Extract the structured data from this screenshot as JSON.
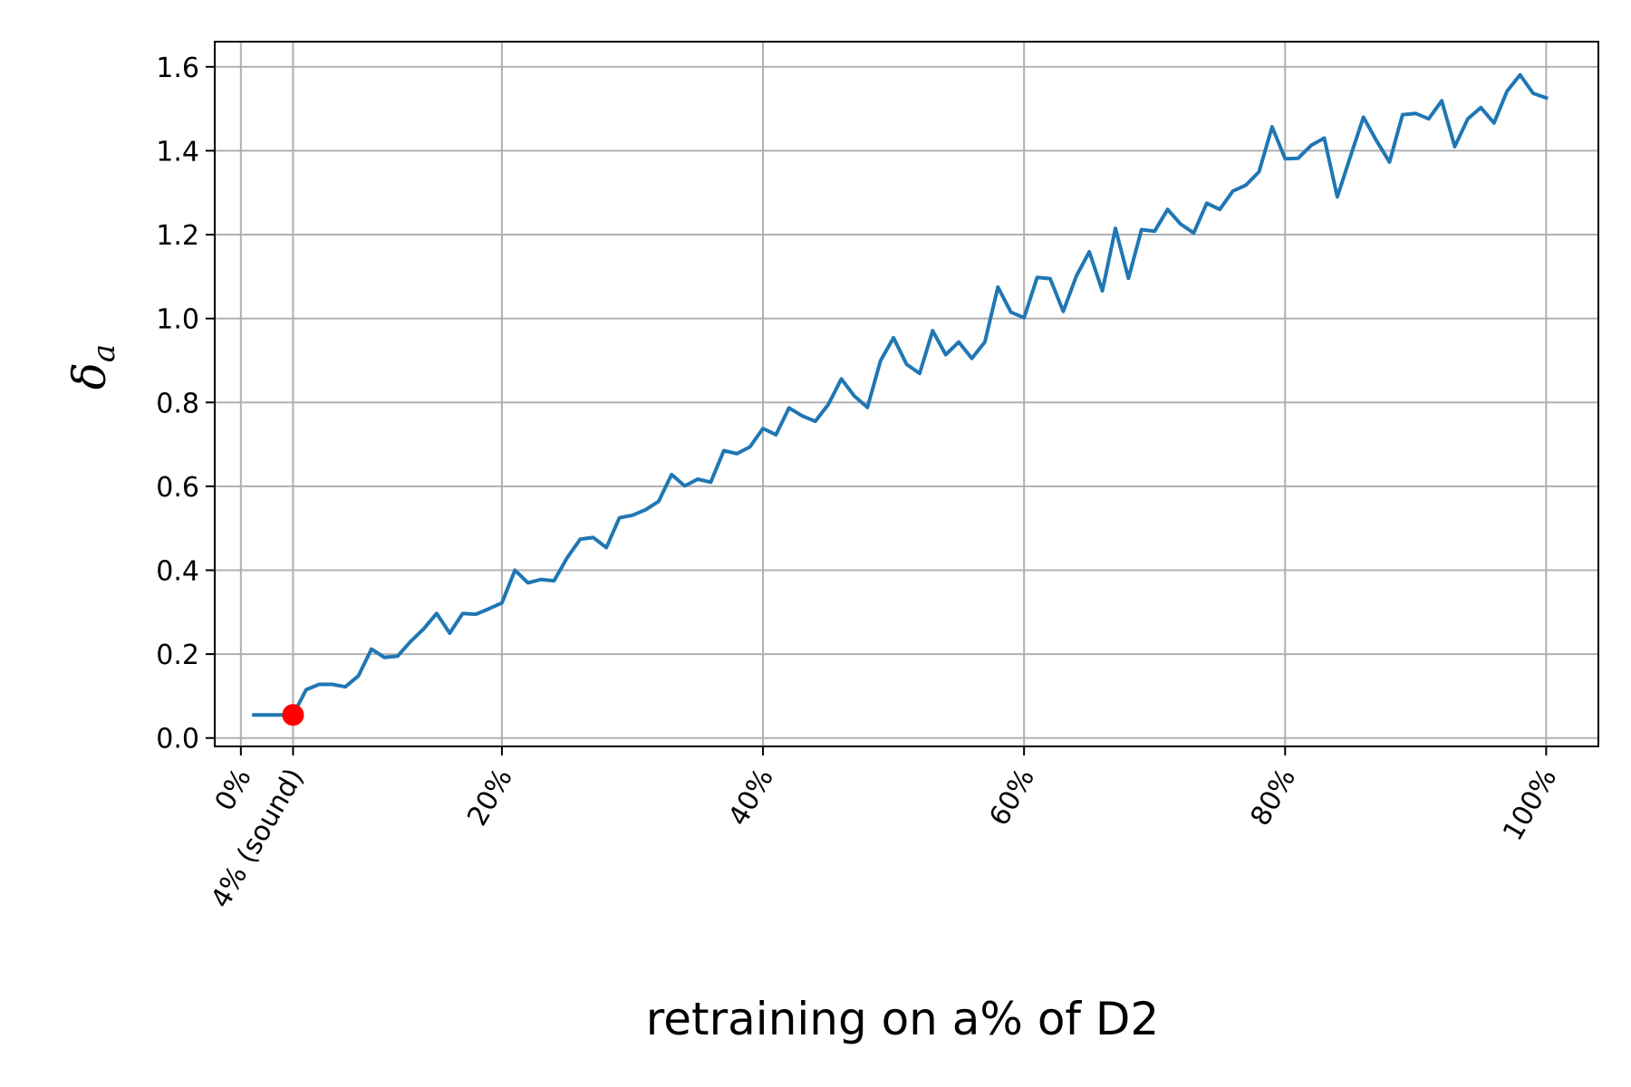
{
  "chart_data": {
    "type": "line",
    "xlabel": "retraining on a% of D2",
    "ylabel": {
      "main": "δ",
      "sub": "a"
    },
    "xlim": [
      -2,
      104
    ],
    "ylim": [
      -0.02,
      1.66
    ],
    "grid": true,
    "x_ticks": [
      {
        "value": 0,
        "label": "0%"
      },
      {
        "value": 4,
        "label": "4% (sound)"
      },
      {
        "value": 20,
        "label": "20%"
      },
      {
        "value": 40,
        "label": "40%"
      },
      {
        "value": 60,
        "label": "60%"
      },
      {
        "value": 80,
        "label": "80%"
      },
      {
        "value": 100,
        "label": "100%"
      }
    ],
    "y_ticks": [
      {
        "value": 0.0,
        "label": "0.0"
      },
      {
        "value": 0.2,
        "label": "0.2"
      },
      {
        "value": 0.4,
        "label": "0.4"
      },
      {
        "value": 0.6,
        "label": "0.6"
      },
      {
        "value": 0.8,
        "label": "0.8"
      },
      {
        "value": 1.0,
        "label": "1.0"
      },
      {
        "value": 1.2,
        "label": "1.2"
      },
      {
        "value": 1.4,
        "label": "1.4"
      },
      {
        "value": 1.6,
        "label": "1.6"
      }
    ],
    "series": [
      {
        "color": "#1f77b4",
        "x": [
          1,
          2,
          3,
          4,
          5,
          6,
          7,
          8,
          9,
          10,
          11,
          12,
          13,
          14,
          15,
          16,
          17,
          18,
          19,
          20,
          21,
          22,
          23,
          24,
          25,
          26,
          27,
          28,
          29,
          30,
          31,
          32,
          33,
          34,
          35,
          36,
          37,
          38,
          39,
          40,
          41,
          42,
          43,
          44,
          45,
          46,
          47,
          48,
          49,
          50,
          51,
          52,
          53,
          54,
          55,
          56,
          57,
          58,
          59,
          60,
          61,
          62,
          63,
          64,
          65,
          66,
          67,
          68,
          69,
          70,
          71,
          72,
          73,
          74,
          75,
          76,
          77,
          78,
          79,
          80,
          81,
          82,
          83,
          84,
          85,
          86,
          87,
          88,
          89,
          90,
          91,
          92,
          93,
          94,
          95,
          96,
          97,
          98,
          99,
          100
        ],
        "y": [
          0.055,
          0.055,
          0.055,
          0.055,
          0.115,
          0.128,
          0.128,
          0.122,
          0.148,
          0.212,
          0.192,
          0.195,
          0.23,
          0.26,
          0.297,
          0.25,
          0.297,
          0.295,
          0.308,
          0.322,
          0.4,
          0.37,
          0.378,
          0.375,
          0.43,
          0.474,
          0.478,
          0.454,
          0.525,
          0.531,
          0.544,
          0.564,
          0.628,
          0.601,
          0.617,
          0.61,
          0.685,
          0.678,
          0.694,
          0.738,
          0.723,
          0.787,
          0.768,
          0.755,
          0.795,
          0.856,
          0.815,
          0.788,
          0.899,
          0.954,
          0.891,
          0.869,
          0.971,
          0.914,
          0.944,
          0.905,
          0.944,
          1.075,
          1.015,
          1.002,
          1.098,
          1.095,
          1.017,
          1.101,
          1.159,
          1.066,
          1.215,
          1.096,
          1.212,
          1.208,
          1.26,
          1.225,
          1.204,
          1.275,
          1.26,
          1.304,
          1.318,
          1.35,
          1.457,
          1.381,
          1.382,
          1.413,
          1.43,
          1.29,
          1.386,
          1.48,
          1.424,
          1.373,
          1.486,
          1.489,
          1.476,
          1.519,
          1.41,
          1.476,
          1.503,
          1.466,
          1.542,
          1.581,
          1.537,
          1.526
        ]
      }
    ],
    "highlight_point": {
      "x": 4,
      "y": 0.055,
      "color": "#ff0000"
    }
  }
}
